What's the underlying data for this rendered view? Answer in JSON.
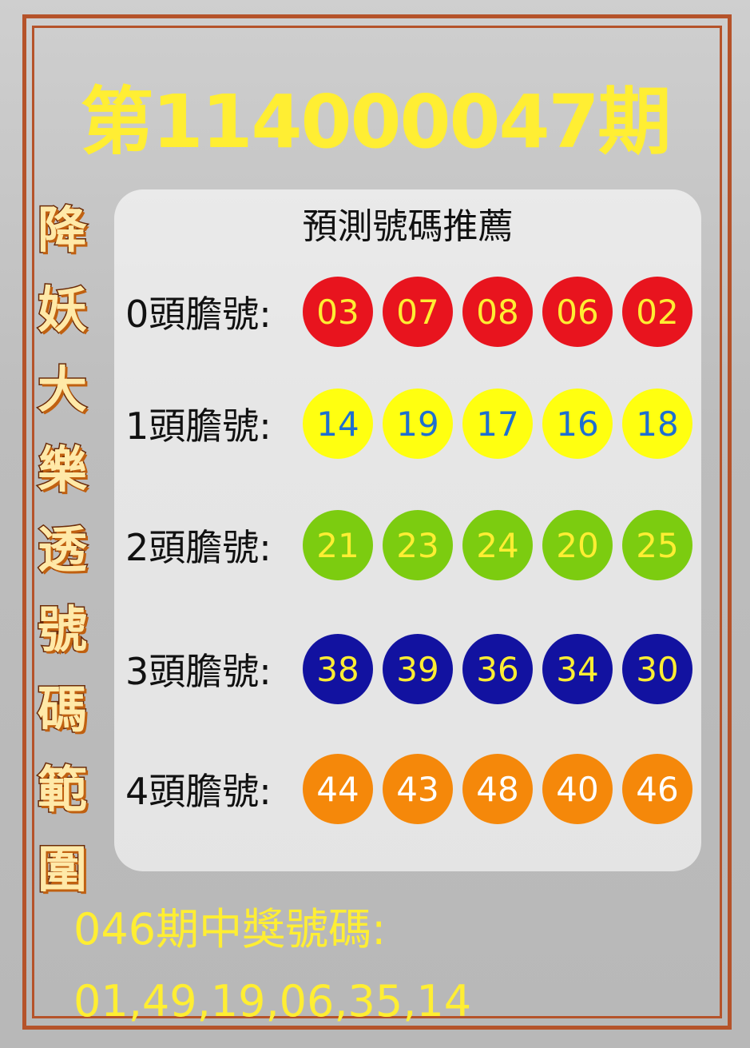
{
  "title": "第114000047期",
  "side_title": [
    "降",
    "妖",
    "大",
    "樂",
    "透",
    "號",
    "碼",
    "範",
    "圍"
  ],
  "panel": {
    "title": "預測號碼推薦",
    "rows": [
      {
        "label": "0頭膽號:",
        "numbers": [
          "03",
          "07",
          "08",
          "06",
          "02"
        ],
        "ball_color": "#e8141e",
        "text_color": "#ffee33"
      },
      {
        "label": "1頭膽號:",
        "numbers": [
          "14",
          "19",
          "17",
          "16",
          "18"
        ],
        "ball_color": "#ffff10",
        "text_color": "#1e6fd0"
      },
      {
        "label": "2頭膽號:",
        "numbers": [
          "21",
          "23",
          "24",
          "20",
          "25"
        ],
        "ball_color": "#7ccc10",
        "text_color": "#ffee33"
      },
      {
        "label": "3頭膽號:",
        "numbers": [
          "38",
          "39",
          "36",
          "34",
          "30"
        ],
        "ball_color": "#1212a0",
        "text_color": "#ffee33"
      },
      {
        "label": "4頭膽號:",
        "numbers": [
          "44",
          "43",
          "48",
          "40",
          "46"
        ],
        "ball_color": "#f5880a",
        "text_color": "#ffffff"
      }
    ]
  },
  "previous": {
    "label": "046期中獎號碼:",
    "numbers": "01,49,19,06,35,14"
  }
}
